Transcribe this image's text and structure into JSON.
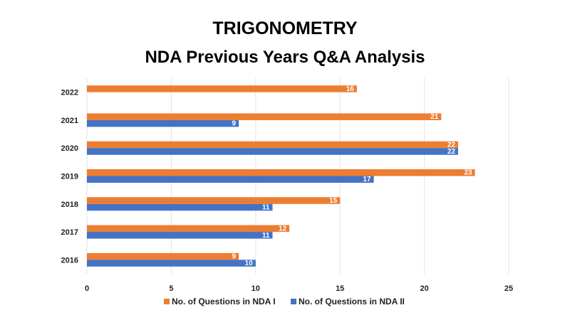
{
  "chart_data": {
    "type": "bar",
    "orientation": "horizontal",
    "title": "TRIGONOMETRY",
    "subtitle": "NDA Previous Years Q&A Analysis",
    "categories": [
      "2016",
      "2017",
      "2018",
      "2019",
      "2020",
      "2021",
      "2022"
    ],
    "series": [
      {
        "name": "No. of Questions in NDA I",
        "color": "#ED7D31",
        "values": [
          9,
          12,
          15,
          23,
          22,
          21,
          16
        ]
      },
      {
        "name": "No. of Questions in NDA II",
        "color": "#4472C4",
        "values": [
          10,
          11,
          11,
          17,
          22,
          9,
          null
        ]
      }
    ],
    "xlim": [
      0,
      25
    ],
    "xticks": [
      0,
      5,
      10,
      15,
      20,
      25
    ],
    "grid": true,
    "legend_position": "bottom"
  }
}
